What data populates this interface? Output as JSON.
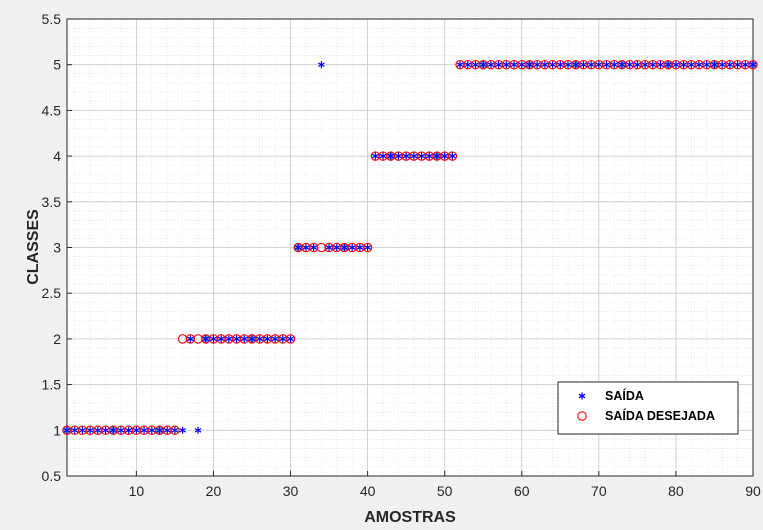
{
  "chart_data": {
    "type": "scatter",
    "title": "",
    "xlabel": "AMOSTRAS",
    "ylabel": "CLASSES",
    "xlim": [
      1,
      90
    ],
    "ylim": [
      0.5,
      5.5
    ],
    "xticks": [
      10,
      20,
      30,
      40,
      50,
      60,
      70,
      80,
      90
    ],
    "yticks": [
      0.5,
      1,
      1.5,
      2,
      2.5,
      3,
      3.5,
      4,
      4.5,
      5,
      5.5
    ],
    "xtick_labels": [
      "10",
      "20",
      "30",
      "40",
      "50",
      "60",
      "70",
      "80",
      "90"
    ],
    "ytick_labels": [
      "0.5",
      "1",
      "1.5",
      "2",
      "2.5",
      "3",
      "3.5",
      "4",
      "4.5",
      "5",
      "5.5"
    ],
    "grid": true,
    "minor_grid": true,
    "legend_position": "bottom-right",
    "series": [
      {
        "name": "SAÍDA",
        "marker": "asterisk",
        "color": "#0000ff",
        "x": [
          1,
          2,
          3,
          4,
          5,
          6,
          7,
          8,
          9,
          10,
          11,
          12,
          13,
          14,
          15,
          16,
          17,
          18,
          19,
          20,
          21,
          22,
          23,
          24,
          25,
          26,
          27,
          28,
          29,
          30,
          31,
          32,
          33,
          34,
          35,
          36,
          37,
          38,
          39,
          40,
          41,
          42,
          43,
          44,
          45,
          46,
          47,
          48,
          49,
          50,
          51,
          52,
          53,
          54,
          55,
          56,
          57,
          58,
          59,
          60,
          61,
          62,
          63,
          64,
          65,
          66,
          67,
          68,
          69,
          70,
          71,
          72,
          73,
          74,
          75,
          76,
          77,
          78,
          79,
          80,
          81,
          82,
          83,
          84,
          85,
          86,
          87,
          88,
          89,
          90
        ],
        "y": [
          1,
          1,
          1,
          1,
          1,
          1,
          1,
          1,
          1,
          1,
          1,
          1,
          1,
          1,
          1,
          1,
          2,
          1,
          2,
          2,
          2,
          2,
          2,
          2,
          2,
          2,
          2,
          2,
          2,
          2,
          3,
          3,
          3,
          5,
          3,
          3,
          3,
          3,
          3,
          3,
          4,
          4,
          4,
          4,
          4,
          4,
          4,
          4,
          4,
          4,
          4,
          5,
          5,
          5,
          5,
          5,
          5,
          5,
          5,
          5,
          5,
          5,
          5,
          5,
          5,
          5,
          5,
          5,
          5,
          5,
          5,
          5,
          5,
          5,
          5,
          5,
          5,
          5,
          5,
          5,
          5,
          5,
          5,
          5,
          5,
          5,
          5,
          5,
          5,
          5
        ]
      },
      {
        "name": "SAÍDA DESEJADA",
        "marker": "circle",
        "color": "#ff0000",
        "x": [
          1,
          2,
          3,
          4,
          5,
          6,
          7,
          8,
          9,
          10,
          11,
          12,
          13,
          14,
          15,
          16,
          17,
          18,
          19,
          20,
          21,
          22,
          23,
          24,
          25,
          26,
          27,
          28,
          29,
          30,
          31,
          32,
          33,
          34,
          35,
          36,
          37,
          38,
          39,
          40,
          41,
          42,
          43,
          44,
          45,
          46,
          47,
          48,
          49,
          50,
          51,
          52,
          53,
          54,
          55,
          56,
          57,
          58,
          59,
          60,
          61,
          62,
          63,
          64,
          65,
          66,
          67,
          68,
          69,
          70,
          71,
          72,
          73,
          74,
          75,
          76,
          77,
          78,
          79,
          80,
          81,
          82,
          83,
          84,
          85,
          86,
          87,
          88,
          89,
          90
        ],
        "y": [
          1,
          1,
          1,
          1,
          1,
          1,
          1,
          1,
          1,
          1,
          1,
          1,
          1,
          1,
          1,
          2,
          2,
          2,
          2,
          2,
          2,
          2,
          2,
          2,
          2,
          2,
          2,
          2,
          2,
          2,
          3,
          3,
          3,
          3,
          3,
          3,
          3,
          3,
          3,
          3,
          4,
          4,
          4,
          4,
          4,
          4,
          4,
          4,
          4,
          4,
          4,
          5,
          5,
          5,
          5,
          5,
          5,
          5,
          5,
          5,
          5,
          5,
          5,
          5,
          5,
          5,
          5,
          5,
          5,
          5,
          5,
          5,
          5,
          5,
          5,
          5,
          5,
          5,
          5,
          5,
          5,
          5,
          5,
          5,
          5,
          5,
          5,
          5,
          5,
          5
        ]
      }
    ],
    "filled_points": [
      1,
      7,
      13,
      19,
      25,
      31,
      37,
      43,
      49,
      55,
      61,
      67,
      73,
      79,
      85,
      90
    ],
    "filled_color": "#7f9fc8"
  },
  "colors": {
    "figure_bg": "#f0f0f0",
    "axes_bg": "#ffffff",
    "grid": "#d9d9d9",
    "axis": "#262626"
  }
}
